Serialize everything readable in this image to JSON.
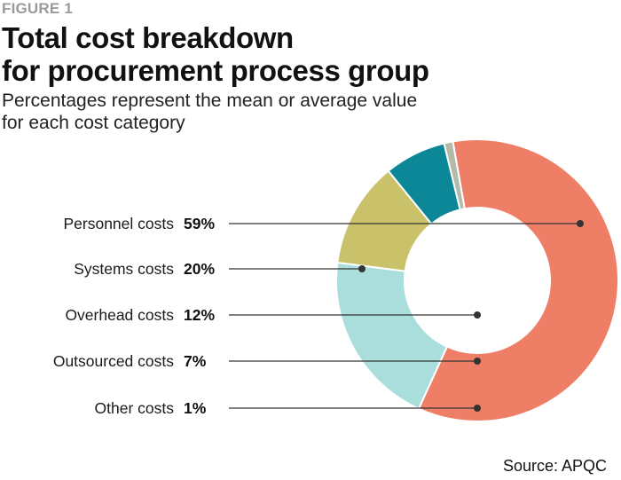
{
  "figure_label": "FIGURE 1",
  "title_lines": [
    "Total cost breakdown",
    "for procurement process group"
  ],
  "subtitle_lines": [
    "Percentages represent the mean or average value",
    "for each cost category"
  ],
  "source": "Source: APQC",
  "colors": {
    "personnel": "#ee7f66",
    "systems": "#aadedd",
    "overhead": "#c9c26a",
    "outsourced": "#0b8798",
    "other": "#b3baa8",
    "leader": "#333333"
  },
  "chart_data": {
    "type": "pie",
    "variant": "donut",
    "title": "Total cost breakdown for procurement process group",
    "subtitle": "Percentages represent the mean or average value for each cost category",
    "slices": [
      {
        "label": "Personnel costs",
        "value": 59,
        "pct_label": "59%",
        "color": "#ee7f66"
      },
      {
        "label": "Systems costs",
        "value": 20,
        "pct_label": "20%",
        "color": "#aadedd"
      },
      {
        "label": "Overhead costs",
        "value": 12,
        "pct_label": "12%",
        "color": "#c9c26a"
      },
      {
        "label": "Outsourced costs",
        "value": 7,
        "pct_label": "7%",
        "color": "#0b8798"
      },
      {
        "label": "Other costs",
        "value": 1,
        "pct_label": "1%",
        "color": "#b3baa8"
      }
    ],
    "legend": "left"
  }
}
